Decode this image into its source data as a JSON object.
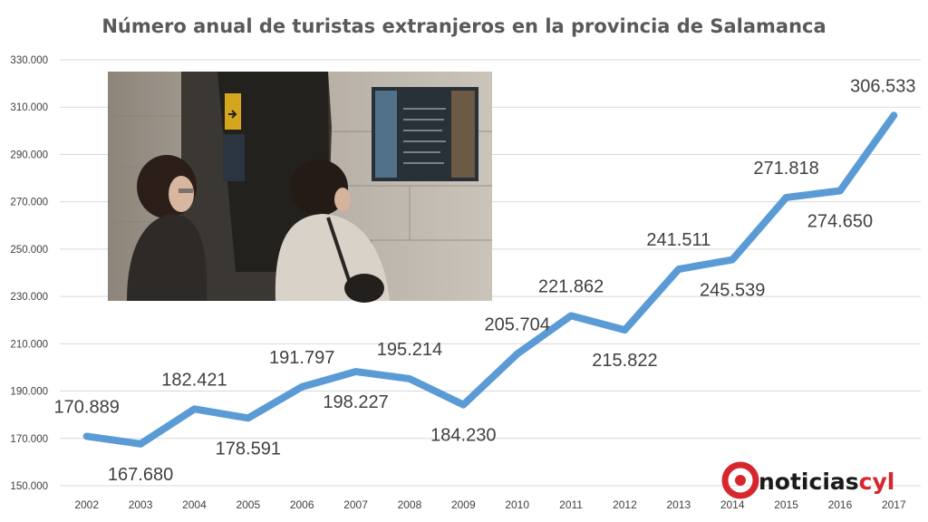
{
  "chart_data": {
    "type": "line",
    "title": "Número anual de turistas extranjeros en la provincia de Salamanca",
    "xlabel": "",
    "ylabel": "",
    "categories": [
      "2002",
      "2003",
      "2004",
      "2005",
      "2006",
      "2007",
      "2008",
      "2009",
      "2010",
      "2011",
      "2012",
      "2013",
      "2014",
      "2015",
      "2016",
      "2017"
    ],
    "series": [
      {
        "values": [
          170889,
          167680,
          182421,
          178591,
          191797,
          198227,
          195214,
          184230,
          205704,
          221862,
          215822,
          241511,
          245539,
          271818,
          274650,
          306533
        ],
        "labels": [
          "170.889",
          "167.680",
          "182.421",
          "178.591",
          "191.797",
          "198.227",
          "195.214",
          "184.230",
          "205.704",
          "221.862",
          "215.822",
          "241.511",
          "245.539",
          "271.818",
          "274.650",
          "306.533"
        ]
      }
    ],
    "ylim": [
      150000,
      330000
    ],
    "yticks": [
      150000,
      170000,
      190000,
      210000,
      230000,
      250000,
      270000,
      290000,
      310000,
      330000
    ],
    "ytick_labels": [
      "150.000",
      "170.000",
      "190.000",
      "210.000",
      "230.000",
      "250.000",
      "270.000",
      "290.000",
      "310.000",
      "330.000"
    ],
    "grid": true,
    "legend": "none",
    "line_color": "#5b9bd5"
  },
  "logo": {
    "text_black": "noticias",
    "text_red": "cyl",
    "red": "#d7262d"
  }
}
